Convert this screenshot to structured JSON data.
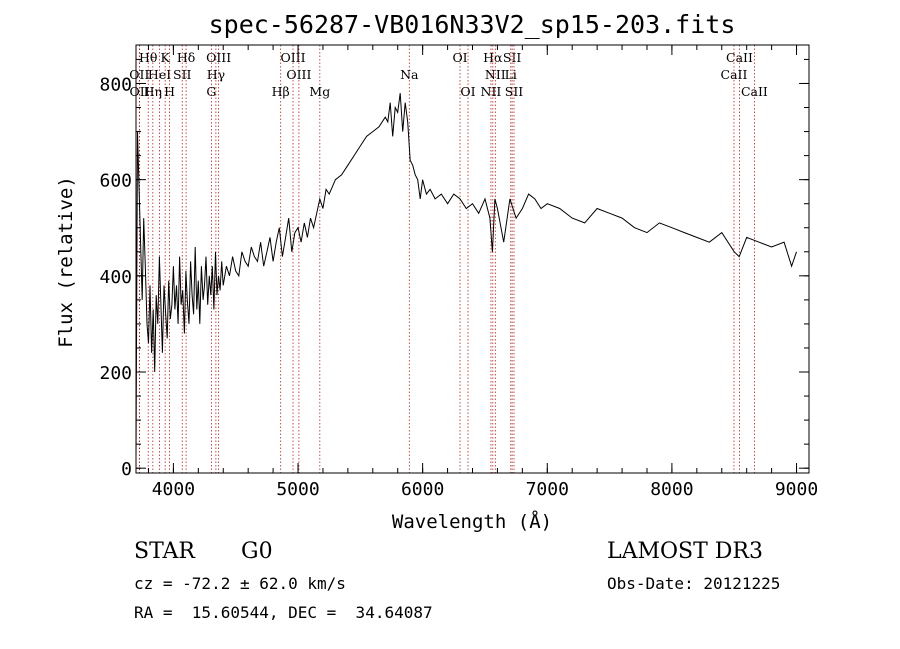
{
  "chart_data": {
    "type": "line",
    "title": "spec-56287-VB016N33V2_sp15-203.fits",
    "xlabel": "Wavelength (Å)",
    "ylabel": "Flux (relative)",
    "xlim": [
      3700,
      9100
    ],
    "ylim": [
      -10,
      880
    ],
    "xticks": [
      4000,
      5000,
      6000,
      7000,
      8000,
      9000
    ],
    "yticks": [
      0,
      200,
      400,
      600,
      800
    ],
    "x_minor_step": 200,
    "y_minor_step": 50,
    "series": [
      {
        "name": "spectrum",
        "x": [
          3700,
          3712,
          3725,
          3738,
          3750,
          3762,
          3775,
          3788,
          3800,
          3812,
          3825,
          3838,
          3850,
          3862,
          3875,
          3888,
          3900,
          3912,
          3925,
          3938,
          3950,
          3962,
          3975,
          3988,
          4000,
          4012,
          4025,
          4038,
          4050,
          4062,
          4075,
          4088,
          4100,
          4112,
          4125,
          4138,
          4150,
          4162,
          4175,
          4188,
          4200,
          4212,
          4225,
          4238,
          4250,
          4262,
          4275,
          4288,
          4300,
          4312,
          4325,
          4338,
          4350,
          4362,
          4375,
          4388,
          4400,
          4425,
          4450,
          4475,
          4500,
          4525,
          4550,
          4575,
          4600,
          4625,
          4650,
          4675,
          4700,
          4725,
          4750,
          4775,
          4800,
          4825,
          4850,
          4875,
          4900,
          4925,
          4950,
          4975,
          5000,
          5025,
          5050,
          5075,
          5100,
          5125,
          5150,
          5175,
          5200,
          5225,
          5250,
          5300,
          5350,
          5400,
          5450,
          5500,
          5550,
          5600,
          5650,
          5700,
          5720,
          5740,
          5760,
          5780,
          5800,
          5820,
          5840,
          5860,
          5880,
          5900,
          5920,
          5940,
          5960,
          5980,
          6000,
          6030,
          6060,
          6100,
          6150,
          6200,
          6250,
          6300,
          6350,
          6400,
          6450,
          6500,
          6540,
          6560,
          6580,
          6600,
          6650,
          6700,
          6750,
          6800,
          6850,
          6900,
          6950,
          7000,
          7100,
          7200,
          7300,
          7400,
          7500,
          7600,
          7700,
          7800,
          7900,
          8000,
          8100,
          8200,
          8300,
          8400,
          8500,
          8540,
          8600,
          8700,
          8800,
          8900,
          8960,
          9000
        ],
        "y": [
          20,
          700,
          580,
          460,
          350,
          520,
          420,
          300,
          260,
          380,
          240,
          330,
          200,
          360,
          300,
          440,
          340,
          240,
          380,
          320,
          270,
          390,
          310,
          340,
          420,
          330,
          380,
          300,
          440,
          340,
          370,
          280,
          410,
          350,
          300,
          430,
          360,
          320,
          460,
          330,
          390,
          300,
          420,
          350,
          380,
          440,
          340,
          400,
          360,
          420,
          330,
          450,
          360,
          400,
          370,
          430,
          380,
          420,
          400,
          440,
          410,
          400,
          450,
          430,
          420,
          460,
          440,
          430,
          470,
          420,
          450,
          480,
          430,
          470,
          500,
          440,
          480,
          520,
          450,
          490,
          500,
          470,
          510,
          480,
          520,
          500,
          530,
          560,
          540,
          580,
          570,
          600,
          610,
          630,
          650,
          670,
          690,
          700,
          710,
          730,
          720,
          760,
          690,
          750,
          740,
          780,
          700,
          760,
          720,
          640,
          630,
          610,
          600,
          560,
          600,
          570,
          580,
          560,
          570,
          550,
          570,
          560,
          540,
          550,
          530,
          560,
          520,
          450,
          560,
          540,
          470,
          560,
          520,
          540,
          570,
          560,
          540,
          550,
          540,
          520,
          510,
          540,
          530,
          520,
          500,
          490,
          510,
          500,
          490,
          480,
          470,
          490,
          450,
          440,
          480,
          470,
          460,
          470,
          420,
          450
        ]
      }
    ],
    "line_markers": [
      {
        "label": "Hθ",
        "wavelength": 3798,
        "row": 0
      },
      {
        "label": "K",
        "wavelength": 3934,
        "row": 0
      },
      {
        "label": "Hδ",
        "wavelength": 4102,
        "row": 0
      },
      {
        "label": "OIII",
        "wavelength": 4363,
        "row": 0
      },
      {
        "label": "OIII",
        "wavelength": 4960,
        "row": 0
      },
      {
        "label": "OI",
        "wavelength": 6300,
        "row": 0
      },
      {
        "label": "Hα",
        "wavelength": 6563,
        "row": 0
      },
      {
        "label": "SII",
        "wavelength": 6718,
        "row": 0
      },
      {
        "label": "CaII",
        "wavelength": 8542,
        "row": 0
      },
      {
        "label": "OII",
        "wavelength": 3727,
        "row": 1
      },
      {
        "label": "HeI",
        "wavelength": 3889,
        "row": 1
      },
      {
        "label": "SII",
        "wavelength": 4071,
        "row": 1
      },
      {
        "label": "Hγ",
        "wavelength": 4341,
        "row": 1
      },
      {
        "label": "OIII",
        "wavelength": 5007,
        "row": 1
      },
      {
        "label": "Na",
        "wavelength": 5893,
        "row": 1
      },
      {
        "label": "NII",
        "wavelength": 6583,
        "row": 1
      },
      {
        "label": "Li",
        "wavelength": 6707,
        "row": 1
      },
      {
        "label": "CaII",
        "wavelength": 8498,
        "row": 1
      },
      {
        "label": "OII",
        "wavelength": 3729,
        "row": 2
      },
      {
        "label": "Hη",
        "wavelength": 3835,
        "row": 2
      },
      {
        "label": "H",
        "wavelength": 3969,
        "row": 2
      },
      {
        "label": "G",
        "wavelength": 4305,
        "row": 2
      },
      {
        "label": "Hβ",
        "wavelength": 4861,
        "row": 2
      },
      {
        "label": "Mg",
        "wavelength": 5175,
        "row": 2
      },
      {
        "label": "OI",
        "wavelength": 6364,
        "row": 2
      },
      {
        "label": "NII",
        "wavelength": 6548,
        "row": 2
      },
      {
        "label": "SII",
        "wavelength": 6733,
        "row": 2
      },
      {
        "label": "CaII",
        "wavelength": 8662,
        "row": 2
      }
    ],
    "marker_color": "#b22222"
  },
  "info": {
    "class_label": "STAR",
    "subclass": "G0",
    "survey": "LAMOST DR3",
    "redshift": "cz = -72.2 ± 62.0 km/s",
    "obs_date": "Obs-Date: 20121225",
    "coords": "RA =  15.60544, DEC =  34.64087"
  }
}
